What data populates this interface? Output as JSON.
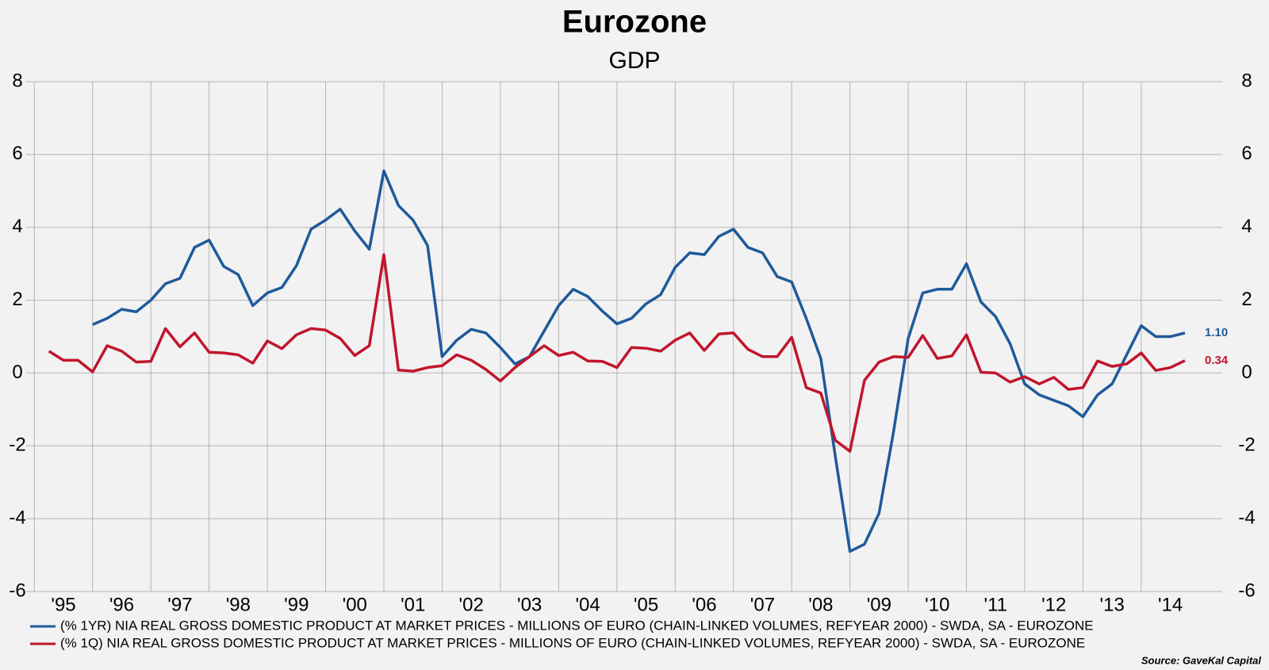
{
  "chart_data": {
    "type": "line",
    "title": "Eurozone",
    "subtitle": "GDP",
    "source": "Source: GaveKal Capital",
    "x": [
      1995.25,
      1995.5,
      1995.75,
      1996,
      1996.25,
      1996.5,
      1996.75,
      1997,
      1997.25,
      1997.5,
      1997.75,
      1998,
      1998.25,
      1998.5,
      1998.75,
      1999,
      1999.25,
      1999.5,
      1999.75,
      2000,
      2000.25,
      2000.5,
      2000.75,
      2001,
      2001.25,
      2001.5,
      2001.75,
      2002,
      2002.25,
      2002.5,
      2002.75,
      2003,
      2003.25,
      2003.5,
      2003.75,
      2004,
      2004.25,
      2004.5,
      2004.75,
      2005,
      2005.25,
      2005.5,
      2005.75,
      2006,
      2006.25,
      2006.5,
      2006.75,
      2007,
      2007.25,
      2007.5,
      2007.75,
      2008,
      2008.25,
      2008.5,
      2008.75,
      2009,
      2009.25,
      2009.5,
      2009.75,
      2010,
      2010.25,
      2010.5,
      2010.75,
      2011,
      2011.25,
      2011.5,
      2011.75,
      2012,
      2012.25,
      2012.5,
      2012.75,
      2013,
      2013.25,
      2013.5,
      2013.75,
      2014,
      2014.25,
      2014.5,
      2014.75
    ],
    "xlim": [
      1994.86,
      2015.39
    ],
    "xticks": [
      {
        "value": 1995,
        "label": "'95"
      },
      {
        "value": 1996,
        "label": "'96"
      },
      {
        "value": 1997,
        "label": "'97"
      },
      {
        "value": 1998,
        "label": "'98"
      },
      {
        "value": 1999,
        "label": "'99"
      },
      {
        "value": 2000,
        "label": "'00"
      },
      {
        "value": 2001,
        "label": "'01"
      },
      {
        "value": 2002,
        "label": "'02"
      },
      {
        "value": 2003,
        "label": "'03"
      },
      {
        "value": 2004,
        "label": "'04"
      },
      {
        "value": 2005,
        "label": "'05"
      },
      {
        "value": 2006,
        "label": "'06"
      },
      {
        "value": 2007,
        "label": "'07"
      },
      {
        "value": 2008,
        "label": "'08"
      },
      {
        "value": 2009,
        "label": "'09"
      },
      {
        "value": 2010,
        "label": "'10"
      },
      {
        "value": 2011,
        "label": "'11"
      },
      {
        "value": 2012,
        "label": "'12"
      },
      {
        "value": 2013,
        "label": "'13"
      },
      {
        "value": 2014,
        "label": "'14"
      }
    ],
    "ylim": [
      -6,
      8
    ],
    "yticks": [
      -6,
      -4,
      -2,
      0,
      2,
      4,
      6,
      8
    ],
    "y2lim": [
      -6,
      8
    ],
    "y2ticks": [
      -6,
      -4,
      -2,
      0,
      2,
      4,
      6,
      8
    ],
    "grid": true,
    "series": [
      {
        "name": "(% 1YR) NIA REAL GROSS DOMESTIC PRODUCT AT MARKET PRICES - MILLIONS OF EURO (CHAIN-LINKED VOLUMES, REFYEAR 2000) - SWDA, SA - EUROZONE",
        "color": "#1f5a9a",
        "values": [
          null,
          null,
          null,
          1.33,
          1.5,
          1.75,
          1.68,
          2.0,
          2.45,
          2.6,
          3.45,
          3.65,
          2.93,
          2.7,
          1.85,
          2.2,
          2.35,
          2.95,
          3.95,
          4.2,
          4.5,
          3.9,
          3.4,
          5.55,
          4.6,
          4.2,
          3.5,
          0.45,
          0.9,
          1.2,
          1.1,
          0.7,
          0.25,
          0.45,
          1.15,
          1.85,
          2.3,
          2.1,
          1.7,
          1.35,
          1.5,
          1.9,
          2.15,
          2.9,
          3.3,
          3.25,
          3.75,
          3.95,
          3.45,
          3.3,
          2.65,
          2.5,
          1.5,
          0.4,
          -2.3,
          -4.9,
          -4.7,
          -3.85,
          -1.6,
          0.95,
          2.2,
          2.3,
          2.3,
          3.0,
          1.95,
          1.55,
          0.8,
          -0.3,
          -0.6,
          -0.75,
          -0.9,
          -1.2,
          -0.6,
          -0.3,
          0.5,
          1.3,
          1.0,
          1.0,
          1.1
        ],
        "value_labels": [
          null,
          null,
          null,
          null,
          null,
          null,
          null,
          null,
          null,
          null,
          null,
          null,
          null,
          null,
          null,
          null,
          null,
          null,
          null,
          null,
          null,
          null,
          null,
          null,
          null,
          null,
          null,
          null,
          null,
          null,
          null,
          null,
          null,
          null,
          null,
          null,
          null,
          null,
          null,
          null,
          null,
          null,
          null,
          null,
          null,
          null,
          null,
          null,
          null,
          null,
          null,
          null,
          null,
          null,
          null,
          null,
          null,
          null,
          null,
          null,
          null,
          null,
          null,
          null,
          null,
          null,
          null,
          null,
          null,
          null,
          null,
          null,
          null,
          null,
          null,
          null,
          null,
          null,
          "1.10"
        ]
      },
      {
        "name": "(% 1Q) NIA REAL GROSS DOMESTIC PRODUCT AT MARKET PRICES - MILLIONS OF EURO (CHAIN-LINKED VOLUMES, REFYEAR 2000) - SWDA, SA - EUROZONE",
        "color": "#c0162c",
        "values": [
          0.6,
          0.35,
          0.35,
          0.03,
          0.75,
          0.6,
          0.3,
          0.32,
          1.22,
          0.72,
          1.1,
          0.57,
          0.55,
          0.5,
          0.27,
          0.88,
          0.67,
          1.05,
          1.22,
          1.18,
          0.95,
          0.48,
          0.75,
          3.25,
          0.08,
          0.05,
          0.15,
          0.2,
          0.5,
          0.35,
          0.1,
          -0.22,
          0.15,
          0.45,
          0.75,
          0.48,
          0.57,
          0.33,
          0.32,
          0.15,
          0.7,
          0.68,
          0.6,
          0.9,
          1.1,
          0.62,
          1.07,
          1.1,
          0.65,
          0.45,
          0.45,
          0.98,
          -0.4,
          -0.55,
          -1.85,
          -2.15,
          -0.2,
          0.3,
          0.45,
          0.43,
          1.03,
          0.4,
          0.47,
          1.05,
          0.02,
          0.0,
          -0.25,
          -0.1,
          -0.3,
          -0.12,
          -0.45,
          -0.4,
          0.33,
          0.18,
          0.25,
          0.55,
          0.07,
          0.15,
          0.34
        ],
        "value_labels": [
          null,
          null,
          null,
          null,
          null,
          null,
          null,
          null,
          null,
          null,
          null,
          null,
          null,
          null,
          null,
          null,
          null,
          null,
          null,
          null,
          null,
          null,
          null,
          null,
          null,
          null,
          null,
          null,
          null,
          null,
          null,
          null,
          null,
          null,
          null,
          null,
          null,
          null,
          null,
          null,
          null,
          null,
          null,
          null,
          null,
          null,
          null,
          null,
          null,
          null,
          null,
          null,
          null,
          null,
          null,
          null,
          null,
          null,
          null,
          null,
          null,
          null,
          null,
          null,
          null,
          null,
          null,
          null,
          null,
          null,
          null,
          null,
          null,
          null,
          null,
          null,
          null,
          null,
          "0.34"
        ]
      }
    ]
  }
}
